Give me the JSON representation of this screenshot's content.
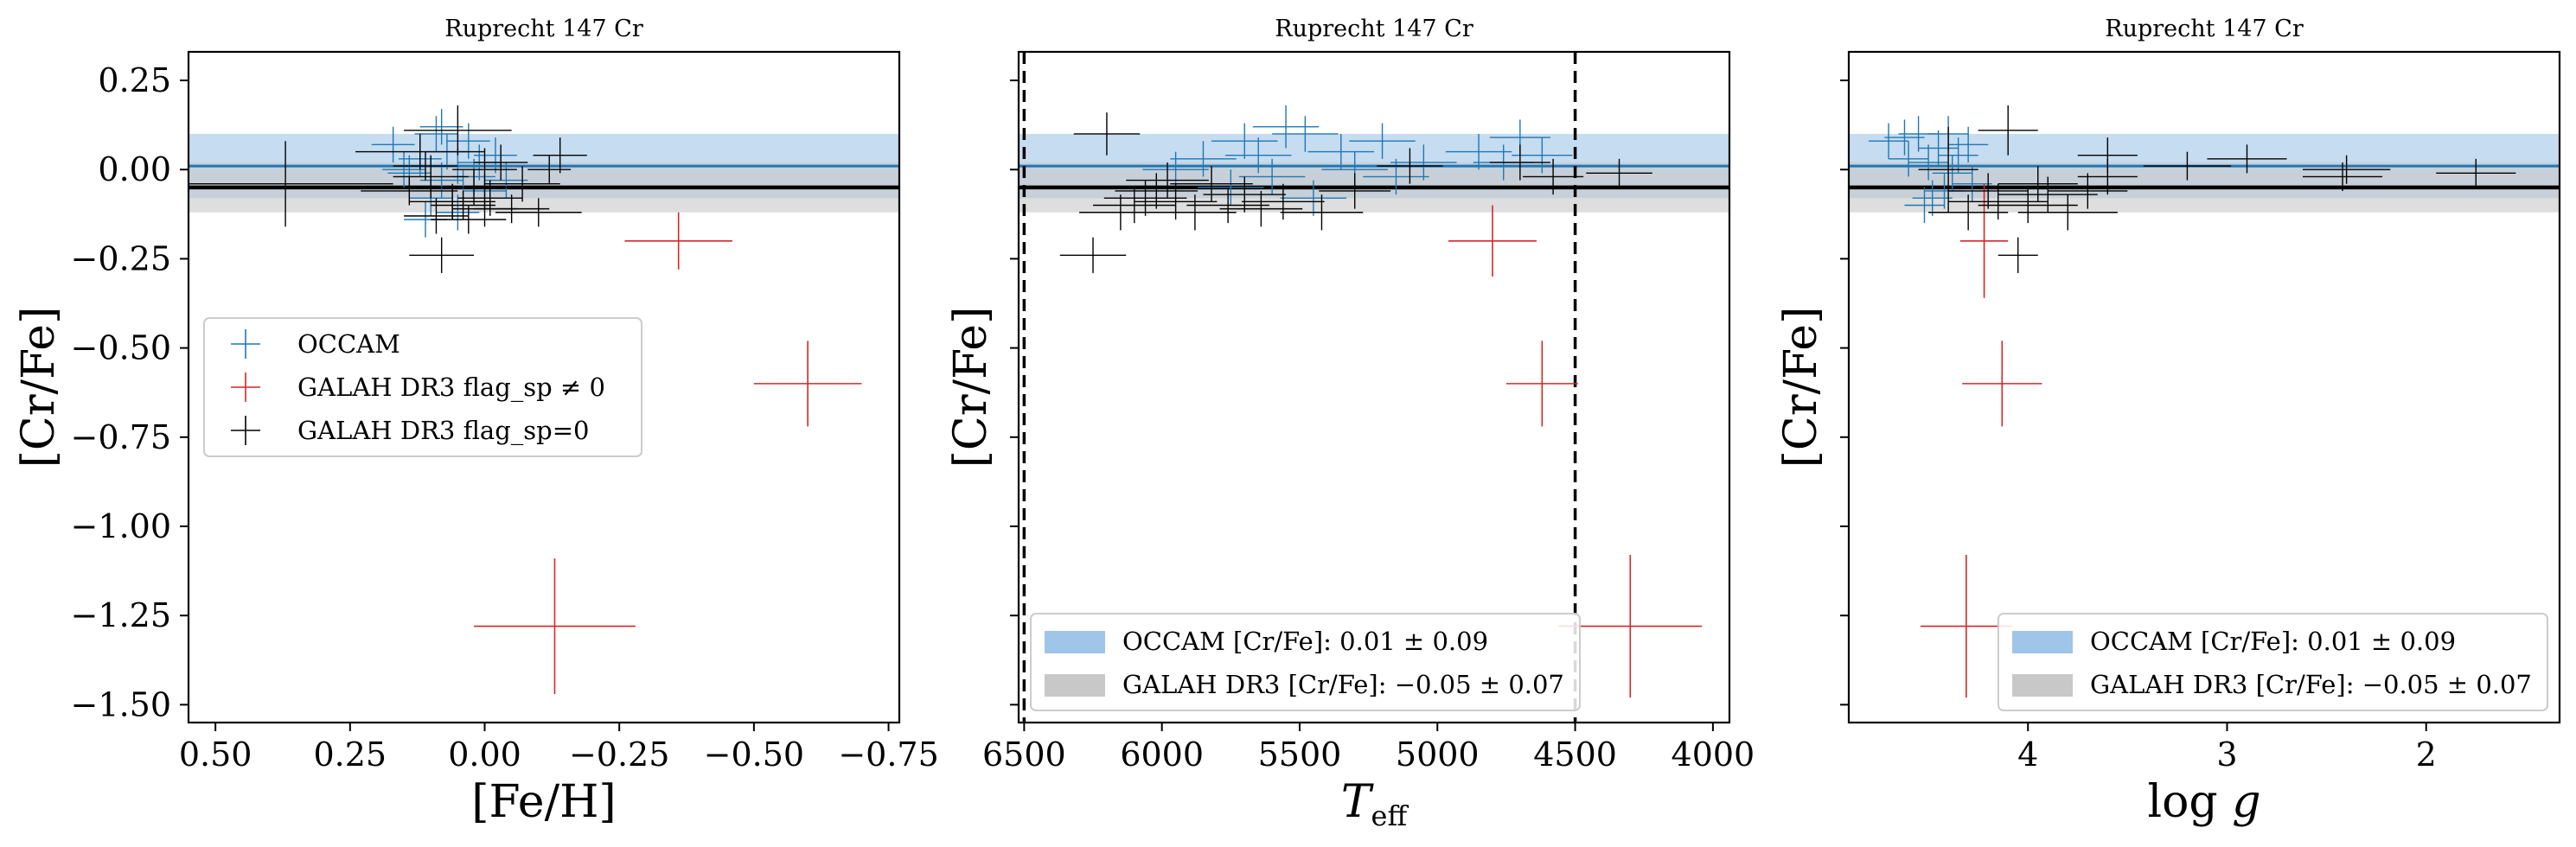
{
  "figure": {
    "colors": {
      "occam": "#1f77b4",
      "galah_flag": "#d62728",
      "galah_good": "#000000",
      "occam_band": "#9fc5e8",
      "galah_band": "#c8c8c8"
    }
  },
  "chart_data": [
    {
      "type": "scatter",
      "title": "Ruprecht 147 Cr",
      "xlabel": "[Fe/H]",
      "ylabel": "[Cr/Fe]",
      "xlim": [
        0.55,
        -0.77
      ],
      "ylim": [
        -1.55,
        0.33
      ],
      "xticks": [
        0.5,
        0.25,
        0.0,
        -0.25,
        -0.5,
        -0.75
      ],
      "xtick_labels": [
        "0.50",
        "0.25",
        "0.00",
        "−0.25",
        "−0.50",
        "−0.75"
      ],
      "yticks": [
        0.25,
        0.0,
        -0.25,
        -0.5,
        -0.75,
        -1.0,
        -1.25,
        -1.5
      ],
      "ytick_labels": [
        "0.25",
        "0.00",
        "−0.25",
        "−0.50",
        "−0.75",
        "−1.00",
        "−1.25",
        "−1.50"
      ],
      "show_yticklabels": true,
      "legend": {
        "position": "center-left",
        "entries": [
          {
            "series": "occam",
            "label": "OCCAM"
          },
          {
            "series": "galah_flag",
            "label": "GALAH DR3 flag_sp ≠ 0"
          },
          {
            "series": "galah_good",
            "label": "GALAH DR3 flag_sp=0"
          }
        ]
      },
      "bands": [
        {
          "series": "occam",
          "center": 0.01,
          "halfwidth": 0.09
        },
        {
          "series": "galah",
          "center": -0.05,
          "halfwidth": 0.07
        }
      ],
      "series": [
        {
          "name": "OCCAM",
          "key": "occam",
          "points": [
            [
              0.17,
              0.07,
              0.04,
              0.05
            ],
            [
              0.14,
              -0.01,
              0.04,
              0.05
            ],
            [
              0.12,
              0.03,
              0.04,
              0.05
            ],
            [
              0.1,
              -0.08,
              0.04,
              0.05
            ],
            [
              0.09,
              0.1,
              0.04,
              0.05
            ],
            [
              0.08,
              -0.03,
              0.04,
              0.05
            ],
            [
              0.07,
              0.05,
              0.04,
              0.05
            ],
            [
              0.06,
              -0.09,
              0.04,
              0.05
            ],
            [
              0.05,
              0.01,
              0.04,
              0.05
            ],
            [
              0.04,
              -0.05,
              0.04,
              0.05
            ],
            [
              0.03,
              0.08,
              0.04,
              0.05
            ],
            [
              0.02,
              -0.02,
              0.04,
              0.05
            ],
            [
              0.01,
              0.02,
              0.04,
              0.05
            ],
            [
              0.0,
              -0.06,
              0.04,
              0.05
            ],
            [
              -0.02,
              0.04,
              0.04,
              0.05
            ],
            [
              -0.04,
              -0.03,
              0.04,
              0.05
            ],
            [
              0.11,
              -0.14,
              0.04,
              0.05
            ],
            [
              0.15,
              0.0,
              0.04,
              0.05
            ],
            [
              0.08,
              0.12,
              0.04,
              0.05
            ],
            [
              0.05,
              -0.12,
              0.04,
              0.05
            ]
          ]
        },
        {
          "name": "GALAH DR3 flag_sp ≠ 0",
          "key": "galah_flag",
          "points": [
            [
              -0.36,
              -0.2,
              0.1,
              0.08
            ],
            [
              -0.6,
              -0.6,
              0.1,
              0.12
            ],
            [
              -0.13,
              -1.28,
              0.15,
              0.19
            ]
          ]
        },
        {
          "name": "GALAH DR3 flag_sp=0",
          "key": "galah_good",
          "points": [
            [
              0.37,
              -0.04,
              0.2,
              0.12
            ],
            [
              0.12,
              0.05,
              0.12,
              0.05
            ],
            [
              0.05,
              0.11,
              0.1,
              0.07
            ],
            [
              0.1,
              -0.02,
              0.07,
              0.06
            ],
            [
              0.14,
              -0.06,
              0.09,
              0.04
            ],
            [
              0.06,
              -0.09,
              0.08,
              0.05
            ],
            [
              0.02,
              -0.05,
              0.07,
              0.05
            ],
            [
              -0.01,
              -0.08,
              0.06,
              0.05
            ],
            [
              -0.05,
              -0.11,
              0.07,
              0.04
            ],
            [
              -0.1,
              -0.12,
              0.08,
              0.04
            ],
            [
              0.0,
              0.0,
              0.06,
              0.06
            ],
            [
              -0.03,
              0.02,
              0.05,
              0.05
            ],
            [
              -0.14,
              0.04,
              0.05,
              0.05
            ],
            [
              -0.12,
              0.0,
              0.04,
              0.04
            ],
            [
              0.08,
              -0.24,
              0.06,
              0.05
            ],
            [
              0.09,
              -0.13,
              0.06,
              0.05
            ],
            [
              0.03,
              -0.14,
              0.07,
              0.04
            ],
            [
              -0.07,
              -0.04,
              0.07,
              0.05
            ],
            [
              0.11,
              0.01,
              0.06,
              0.04
            ],
            [
              0.0,
              -0.11,
              0.06,
              0.05
            ],
            [
              0.04,
              -0.1,
              0.06,
              0.04
            ]
          ]
        }
      ]
    },
    {
      "type": "scatter",
      "title": "Ruprecht 147 Cr",
      "xlabel": "T_eff",
      "xlabel_main": "T",
      "xlabel_sub": "eff",
      "ylabel": "[Cr/Fe]",
      "xlim": [
        6520,
        3940
      ],
      "ylim": [
        -1.55,
        0.33
      ],
      "xticks": [
        6500,
        6000,
        5500,
        5000,
        4500,
        4000
      ],
      "xtick_labels": [
        "6500",
        "6000",
        "5500",
        "5000",
        "4500",
        "4000"
      ],
      "yticks": [
        0.25,
        0.0,
        -0.25,
        -0.5,
        -0.75,
        -1.0,
        -1.25,
        -1.5
      ],
      "show_yticklabels": false,
      "vlines": [
        6500,
        4500
      ],
      "legend": {
        "position": "lower-left",
        "entries": [
          {
            "band": "occam",
            "label": "OCCAM [Cr/Fe]: 0.01 ± 0.09"
          },
          {
            "band": "galah",
            "label": "GALAH DR3 [Cr/Fe]: −0.05 ± 0.07"
          }
        ]
      },
      "bands": [
        {
          "series": "occam",
          "center": 0.01,
          "halfwidth": 0.09
        },
        {
          "series": "galah",
          "center": -0.05,
          "halfwidth": 0.07
        }
      ],
      "series": [
        {
          "name": "OCCAM",
          "key": "occam",
          "points": [
            [
              5850,
              0.03,
              120,
              0.05
            ],
            [
              5700,
              0.08,
              120,
              0.05
            ],
            [
              5550,
              0.12,
              120,
              0.06
            ],
            [
              5480,
              0.1,
              120,
              0.05
            ],
            [
              5350,
              0.05,
              120,
              0.05
            ],
            [
              5200,
              0.08,
              120,
              0.05
            ],
            [
              5050,
              0.02,
              120,
              0.05
            ],
            [
              4850,
              0.05,
              120,
              0.05
            ],
            [
              4700,
              0.09,
              110,
              0.05
            ],
            [
              4620,
              0.04,
              110,
              0.05
            ],
            [
              5600,
              -0.02,
              120,
              0.05
            ],
            [
              5750,
              -0.05,
              120,
              0.05
            ],
            [
              5950,
              0.0,
              120,
              0.05
            ],
            [
              5450,
              -0.08,
              120,
              0.05
            ],
            [
              5300,
              0.0,
              120,
              0.05
            ],
            [
              5650,
              0.04,
              120,
              0.05
            ],
            [
              5150,
              -0.02,
              120,
              0.05
            ],
            [
              4760,
              0.02,
              110,
              0.05
            ]
          ]
        },
        {
          "name": "GALAH DR3 flag_sp ≠ 0",
          "key": "galah_flag",
          "points": [
            [
              4800,
              -0.2,
              160,
              0.1
            ],
            [
              4620,
              -0.6,
              130,
              0.12
            ],
            [
              4300,
              -1.28,
              260,
              0.2
            ]
          ]
        },
        {
          "name": "GALAH DR3 flag_sp=0",
          "key": "galah_good",
          "points": [
            [
              6200,
              0.1,
              120,
              0.06
            ],
            [
              6250,
              -0.24,
              120,
              0.05
            ],
            [
              6100,
              -0.1,
              150,
              0.05
            ],
            [
              6020,
              -0.06,
              150,
              0.05
            ],
            [
              5950,
              -0.09,
              150,
              0.05
            ],
            [
              5880,
              -0.12,
              150,
              0.05
            ],
            [
              5820,
              -0.04,
              150,
              0.05
            ],
            [
              5760,
              -0.1,
              150,
              0.05
            ],
            [
              5700,
              -0.07,
              150,
              0.05
            ],
            [
              5640,
              -0.11,
              150,
              0.05
            ],
            [
              5560,
              -0.09,
              150,
              0.05
            ],
            [
              5420,
              -0.12,
              150,
              0.05
            ],
            [
              6150,
              -0.12,
              150,
              0.05
            ],
            [
              6060,
              -0.08,
              150,
              0.05
            ],
            [
              5980,
              -0.03,
              150,
              0.05
            ],
            [
              5100,
              0.01,
              120,
              0.05
            ],
            [
              4700,
              0.02,
              110,
              0.05
            ],
            [
              4580,
              -0.02,
              110,
              0.05
            ],
            [
              4340,
              -0.01,
              120,
              0.04
            ],
            [
              5300,
              -0.06,
              130,
              0.05
            ]
          ]
        }
      ]
    },
    {
      "type": "scatter",
      "title": "Ruprecht 147 Cr",
      "xlabel": "log g",
      "xlabel_main": "log ",
      "xlabel_ital": "g",
      "ylabel": "[Cr/Fe]",
      "xlim": [
        4.9,
        1.33
      ],
      "ylim": [
        -1.55,
        0.33
      ],
      "xticks": [
        4,
        3,
        2
      ],
      "xtick_labels": [
        "4",
        "3",
        "2"
      ],
      "yticks": [
        0.25,
        0.0,
        -0.25,
        -0.5,
        -0.75,
        -1.0,
        -1.25,
        -1.5
      ],
      "show_yticklabels": false,
      "legend": {
        "position": "lower-right",
        "entries": [
          {
            "band": "occam",
            "label": "OCCAM [Cr/Fe]: 0.01 ± 0.09"
          },
          {
            "band": "galah",
            "label": "GALAH DR3 [Cr/Fe]: −0.05 ± 0.07"
          }
        ]
      },
      "bands": [
        {
          "series": "occam",
          "center": 0.01,
          "halfwidth": 0.09
        },
        {
          "series": "galah",
          "center": -0.05,
          "halfwidth": 0.07
        }
      ],
      "series": [
        {
          "name": "OCCAM",
          "key": "occam",
          "points": [
            [
              4.7,
              0.08,
              0.1,
              0.05
            ],
            [
              4.62,
              0.09,
              0.1,
              0.05
            ],
            [
              4.55,
              0.1,
              0.1,
              0.05
            ],
            [
              4.5,
              0.02,
              0.1,
              0.05
            ],
            [
              4.45,
              0.06,
              0.1,
              0.05
            ],
            [
              4.4,
              0.1,
              0.1,
              0.05
            ],
            [
              4.38,
              -0.01,
              0.1,
              0.05
            ],
            [
              4.35,
              0.04,
              0.1,
              0.05
            ],
            [
              4.42,
              -0.06,
              0.1,
              0.05
            ],
            [
              4.48,
              -0.08,
              0.1,
              0.05
            ],
            [
              4.6,
              0.03,
              0.1,
              0.05
            ],
            [
              4.3,
              0.07,
              0.1,
              0.05
            ],
            [
              4.52,
              -0.1,
              0.1,
              0.05
            ],
            [
              4.28,
              -0.04,
              0.1,
              0.05
            ]
          ]
        },
        {
          "name": "GALAH DR3 flag_sp ≠ 0",
          "key": "galah_flag",
          "points": [
            [
              4.22,
              -0.2,
              0.12,
              0.16
            ],
            [
              4.13,
              -0.6,
              0.2,
              0.12
            ],
            [
              4.31,
              -1.28,
              0.23,
              0.2
            ]
          ]
        },
        {
          "name": "GALAH DR3 flag_sp=0",
          "key": "galah_good",
          "points": [
            [
              4.4,
              0.0,
              0.15,
              0.12
            ],
            [
              4.1,
              0.11,
              0.15,
              0.07
            ],
            [
              4.05,
              -0.24,
              0.1,
              0.05
            ],
            [
              4.2,
              -0.06,
              0.2,
              0.05
            ],
            [
              4.15,
              -0.09,
              0.25,
              0.05
            ],
            [
              4.0,
              -0.1,
              0.25,
              0.05
            ],
            [
              3.9,
              -0.07,
              0.25,
              0.05
            ],
            [
              3.8,
              -0.12,
              0.25,
              0.05
            ],
            [
              3.7,
              -0.06,
              0.2,
              0.05
            ],
            [
              3.6,
              -0.02,
              0.15,
              0.05
            ],
            [
              3.6,
              0.04,
              0.15,
              0.05
            ],
            [
              3.2,
              0.01,
              0.22,
              0.04
            ],
            [
              2.9,
              0.03,
              0.2,
              0.04
            ],
            [
              2.4,
              0.0,
              0.22,
              0.04
            ],
            [
              2.42,
              -0.02,
              0.2,
              0.04
            ],
            [
              1.75,
              -0.01,
              0.2,
              0.04
            ],
            [
              4.3,
              -0.12,
              0.2,
              0.05
            ],
            [
              3.95,
              -0.04,
              0.2,
              0.05
            ]
          ]
        }
      ]
    }
  ]
}
